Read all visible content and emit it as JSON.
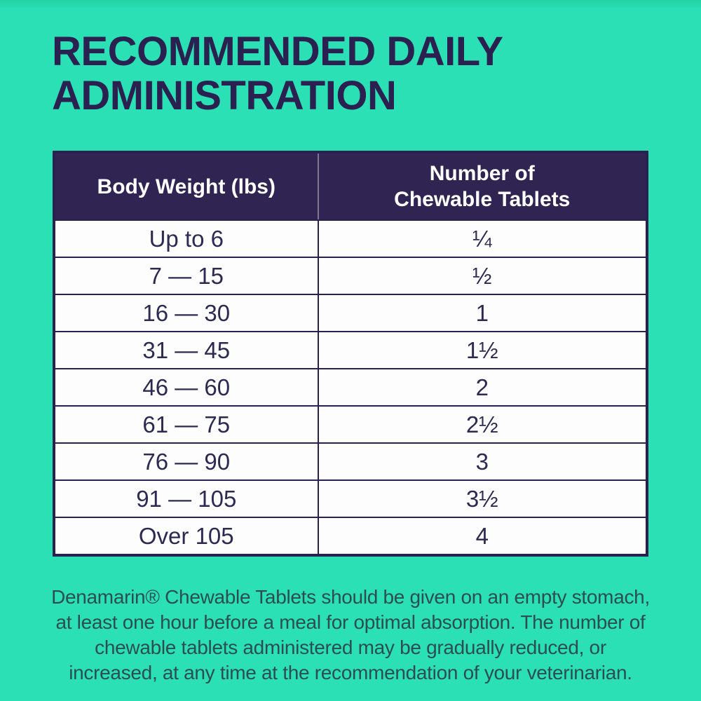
{
  "colors": {
    "background": "#2BE0B4",
    "title_text": "#2B2150",
    "table_header_bg": "#2F2452",
    "table_header_text": "#FFFFFF",
    "table_cell_bg": "#FDFDFE",
    "table_border": "#2B2150",
    "footnote_text": "#2B4F50"
  },
  "title": "RECOMMENDED DAILY\nADMINISTRATION",
  "table": {
    "headers": [
      "Body Weight (lbs)",
      "Number of\nChewable Tablets"
    ],
    "rows": [
      {
        "weight": "Up to 6",
        "tablets": "¼"
      },
      {
        "weight": "7 — 15",
        "tablets": "½"
      },
      {
        "weight": "16 — 30",
        "tablets": "1"
      },
      {
        "weight": "31 — 45",
        "tablets": "1½"
      },
      {
        "weight": "46 — 60",
        "tablets": "2"
      },
      {
        "weight": "61 — 75",
        "tablets": "2½"
      },
      {
        "weight": "76 — 90",
        "tablets": "3"
      },
      {
        "weight": "91 — 105",
        "tablets": "3½"
      },
      {
        "weight": "Over 105",
        "tablets": "4"
      }
    ]
  },
  "footnote": "Denamarin® Chewable Tablets should be given on an empty stomach,\nat least one hour before a meal for optimal absorption. The number of\nchewable tablets administered may be gradually reduced, or\nincreased, at any time at the recommendation of your veterinarian."
}
